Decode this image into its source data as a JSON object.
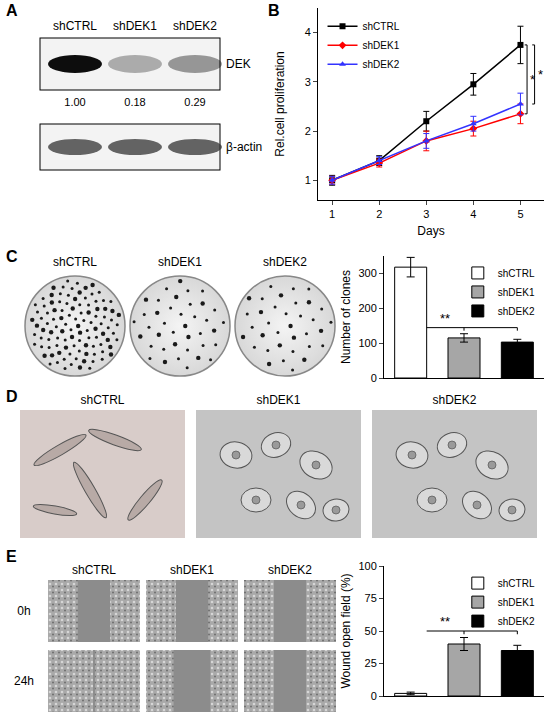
{
  "panel_labels": [
    "A",
    "B",
    "C",
    "D",
    "E"
  ],
  "blot": {
    "lanes": [
      "shCTRL",
      "shDEK1",
      "shDEK2"
    ],
    "bands": [
      "DEK",
      "β-actin"
    ],
    "quantification": [
      "1.00",
      "0.18",
      "0.29"
    ]
  },
  "colony_images": {
    "labels": [
      "shCTRL",
      "shDEK1",
      "shDEK2"
    ]
  },
  "cell_images": {
    "labels": [
      "shCTRL",
      "shDEK1",
      "shDEK2"
    ]
  },
  "wound_images": {
    "labels": [
      "shCTRL",
      "shDEK1",
      "shDEK2"
    ],
    "times": [
      "0h",
      "24h"
    ]
  },
  "chart_data": [
    {
      "type": "line",
      "x": [
        1,
        2,
        3,
        4,
        5
      ],
      "xlabel": "Days",
      "ylabel": "Rel.cell proliferation",
      "xlim": [
        0.7,
        5.5
      ],
      "xticks": [
        1,
        2,
        3,
        4,
        5
      ],
      "ylim": [
        0.6,
        4.5
      ],
      "yticks": [
        1,
        2,
        3,
        4
      ],
      "grid": false,
      "legend": "top left",
      "annotations": [
        "*",
        "*"
      ],
      "series": [
        {
          "name": "shCTRL",
          "color": "#000000",
          "marker": "square",
          "values": [
            1.0,
            1.4,
            2.2,
            2.95,
            3.75
          ],
          "errors": [
            0.1,
            0.1,
            0.2,
            0.22,
            0.38
          ]
        },
        {
          "name": "shDEK1",
          "color": "#ff0000",
          "marker": "diamond",
          "values": [
            1.0,
            1.35,
            1.8,
            2.05,
            2.35
          ],
          "errors": [
            0.08,
            0.08,
            0.2,
            0.15,
            0.2
          ]
        },
        {
          "name": "shDEK2",
          "color": "#3333ff",
          "marker": "triangle-up",
          "values": [
            1.0,
            1.4,
            1.8,
            2.15,
            2.55
          ],
          "errors": [
            0.08,
            0.08,
            0.15,
            0.15,
            0.22
          ]
        }
      ]
    },
    {
      "type": "bar",
      "categories": [
        "shCTRL",
        "shDEK1",
        "shDEK2"
      ],
      "values": [
        318,
        115,
        103
      ],
      "errors": [
        28,
        12,
        8
      ],
      "colors": [
        "#ffffff",
        "#a6a6a6",
        "#000000"
      ],
      "ylabel": "Number of clones",
      "ylim": [
        0,
        350
      ],
      "yticks": [
        0,
        100,
        200,
        300
      ],
      "grid": false,
      "legend": "top right",
      "tick_labels": "y",
      "annotations": [
        "**"
      ]
    },
    {
      "type": "bar",
      "categories": [
        "shCTRL",
        "shDEK1",
        "shDEK2"
      ],
      "values": [
        2,
        40,
        35
      ],
      "errors": [
        1,
        5,
        4
      ],
      "colors": [
        "#ffffff",
        "#a6a6a6",
        "#000000"
      ],
      "ylabel": "Wound open field (%)",
      "ylim": [
        0,
        100
      ],
      "yticks": [
        0,
        25,
        50,
        75,
        100
      ],
      "grid": false,
      "legend": "top right",
      "tick_labels": "y",
      "annotations": [
        "**"
      ]
    }
  ]
}
